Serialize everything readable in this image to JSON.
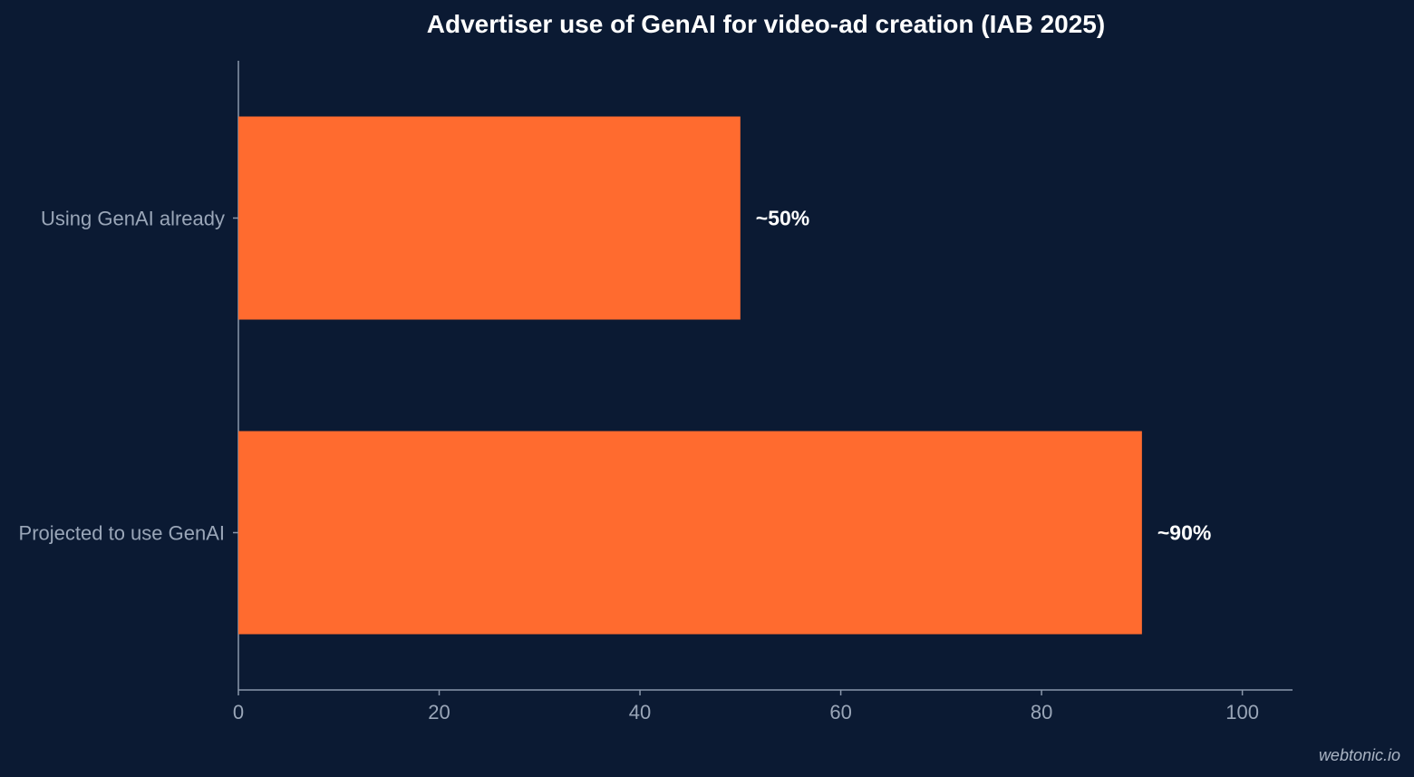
{
  "chart_data": {
    "type": "bar",
    "orientation": "horizontal",
    "title": "Advertiser use of GenAI for video-ad creation (IAB 2025)",
    "xlabel": "",
    "ylabel": "",
    "categories": [
      "Using GenAI already",
      "Projected to use GenAI"
    ],
    "values": [
      50,
      90
    ],
    "data_labels": [
      "~50%",
      "~90%"
    ],
    "xlim": [
      0,
      105
    ],
    "xticks": [
      0,
      20,
      40,
      60,
      80,
      100
    ],
    "xtick_labels": [
      "0",
      "20",
      "40",
      "60",
      "80",
      "100"
    ],
    "grid": false,
    "legend": "none",
    "colors": {
      "background": "#0b1a33",
      "bar": "#ff6b2f",
      "axis": "#8a97ab",
      "tick_text": "#9aa6b8",
      "title_text": "#ffffff",
      "label_text": "#ffffff"
    }
  },
  "watermark": "webtonic.io"
}
